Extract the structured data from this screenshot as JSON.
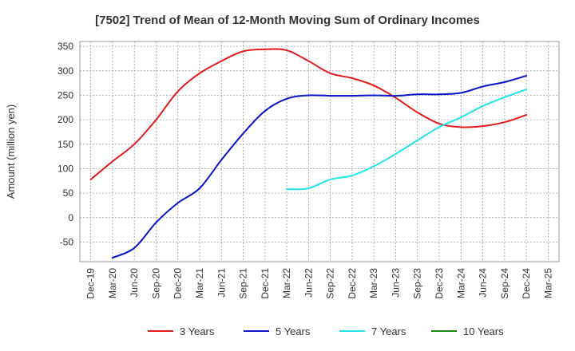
{
  "chart_data": {
    "type": "line",
    "title": "[7502]  Trend of Mean of 12-Month Moving Sum of Ordinary Incomes",
    "xlabel": "",
    "ylabel": "Amount (million yen)",
    "ylim": [
      -90,
      360
    ],
    "yticks": [
      -50,
      0,
      50,
      100,
      150,
      200,
      250,
      300,
      350
    ],
    "categories": [
      "Dec-19",
      "Mar-20",
      "Jun-20",
      "Sep-20",
      "Dec-20",
      "Mar-21",
      "Jun-21",
      "Sep-21",
      "Dec-21",
      "Mar-22",
      "Jun-22",
      "Sep-22",
      "Dec-22",
      "Mar-23",
      "Jun-23",
      "Sep-23",
      "Dec-23",
      "Mar-24",
      "Jun-24",
      "Sep-24",
      "Dec-24",
      "Mar-25"
    ],
    "grid": true,
    "legend_position": "bottom",
    "series": [
      {
        "name": "3 Years",
        "color": "#e31a1c",
        "values": [
          78,
          115,
          150,
          200,
          258,
          295,
          320,
          340,
          344,
          342,
          320,
          295,
          285,
          270,
          245,
          215,
          192,
          185,
          187,
          195,
          210,
          null
        ]
      },
      {
        "name": "5 Years",
        "color": "#0a14c8",
        "values": [
          null,
          -82,
          -62,
          -10,
          30,
          60,
          118,
          172,
          218,
          243,
          250,
          249,
          249,
          250,
          249,
          252,
          252,
          255,
          268,
          277,
          290,
          null
        ]
      },
      {
        "name": "7 Years",
        "color": "#22e5e5",
        "values": [
          null,
          null,
          null,
          null,
          null,
          null,
          null,
          null,
          null,
          58,
          60,
          78,
          86,
          105,
          130,
          158,
          185,
          205,
          228,
          246,
          262,
          null
        ]
      },
      {
        "name": "10 Years",
        "color": "#1b8a1b",
        "values": [
          null,
          null,
          null,
          null,
          null,
          null,
          null,
          null,
          null,
          null,
          null,
          null,
          null,
          null,
          null,
          null,
          null,
          null,
          null,
          null,
          null,
          null
        ]
      }
    ]
  }
}
